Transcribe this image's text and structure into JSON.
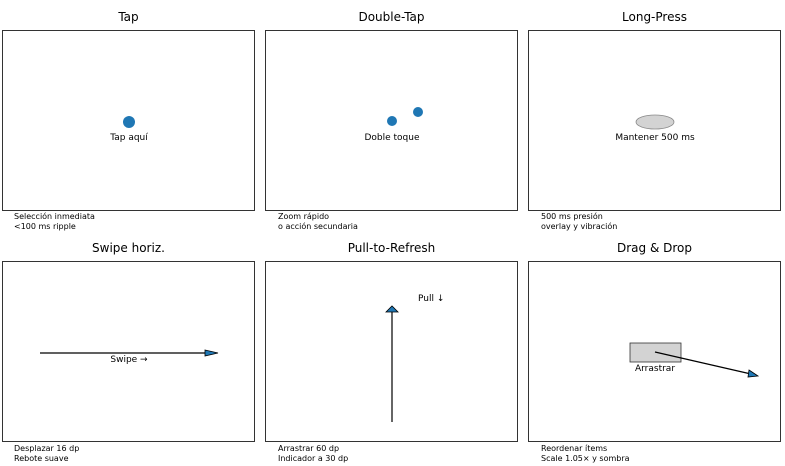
{
  "panels": [
    {
      "title": "Tap",
      "label": "Tap aquí",
      "notes": [
        "Selección inmediata",
        "<100 ms ripple"
      ],
      "shape_color": "#1f77b4"
    },
    {
      "title": "Double-Tap",
      "label": "Doble toque",
      "notes": [
        "Zoom rápido",
        "o acción secundaria"
      ],
      "shape_color": "#1f77b4"
    },
    {
      "title": "Long-Press",
      "label": "Mantener 500 ms",
      "notes": [
        "500 ms presión",
        "overlay y vibración"
      ],
      "shape_color": "#d3d3d3"
    },
    {
      "title": "Swipe horiz.",
      "label": "Swipe →",
      "notes": [
        "Desplazar 16 dp",
        "Rebote suave"
      ],
      "shape_color": "#1f77b4"
    },
    {
      "title": "Pull-to-Refresh",
      "label": "Pull ↓",
      "notes": [
        "Arrastrar 60 dp",
        "Indicador a 30 dp"
      ],
      "shape_color": "#1f77b4"
    },
    {
      "title": "Drag & Drop",
      "label": "Arrastrar",
      "notes": [
        "Reordenar ítems",
        "Scale 1.05× y sombra"
      ],
      "shape_color": "#d3d3d3"
    }
  ]
}
